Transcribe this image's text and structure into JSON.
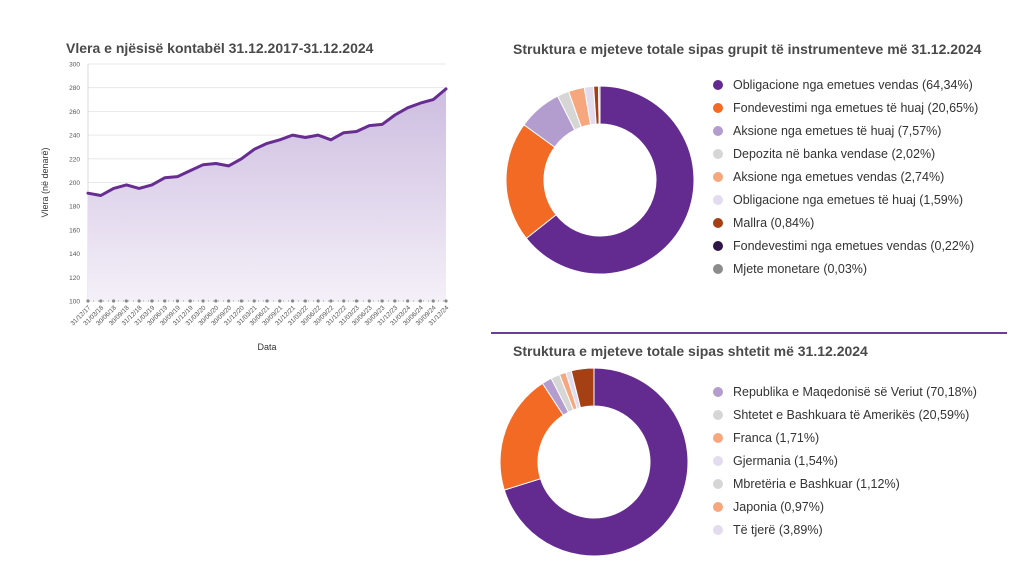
{
  "colors": {
    "line": "#672d91",
    "area_top": "#cdbde0",
    "area_bottom": "#f4f0f8",
    "grid": "#e3e3e3",
    "divider": "#6a3d98"
  },
  "chart_data": [
    {
      "type": "area",
      "title": "Vlera e njësisë kontabël 31.12.2017-31.12.2024",
      "xlabel": "Data",
      "ylabel": "Vlera (në denarë)",
      "ylim": [
        100,
        300
      ],
      "yticks": [
        100,
        120,
        140,
        160,
        180,
        200,
        220,
        240,
        260,
        280,
        300
      ],
      "grid": true,
      "xticks": [
        "31/12/17",
        "31/03/18",
        "30/06/18",
        "30/09/18",
        "31/12/18",
        "31/03/19",
        "30/06/19",
        "30/09/19",
        "31/12/19",
        "31/03/20",
        "30/06/20",
        "30/09/20",
        "31/12/20",
        "31/03/21",
        "30/06/21",
        "30/09/21",
        "31/12/21",
        "31/03/22",
        "30/06/22",
        "30/09/22",
        "31/12/22",
        "31/03/23",
        "30/06/23",
        "30/09/23",
        "31/12/23",
        "31/03/24",
        "30/06/24",
        "30/09/24",
        "31/12/24"
      ],
      "series": [
        {
          "x": [
            "31/12/17",
            "31/03/18",
            "30/06/18",
            "30/09/18",
            "31/12/18",
            "31/03/19",
            "30/06/19",
            "30/09/19",
            "31/12/19",
            "31/03/20",
            "30/06/20",
            "30/09/20",
            "31/12/20",
            "31/03/21",
            "30/06/21",
            "30/09/21",
            "31/12/21",
            "31/03/22",
            "30/06/22",
            "30/09/22",
            "31/12/22",
            "31/03/23",
            "30/06/23",
            "30/09/23",
            "31/12/23",
            "31/03/24",
            "30/06/24",
            "30/09/24",
            "31/12/24"
          ],
          "values": [
            191,
            189,
            195,
            198,
            195,
            198,
            204,
            205,
            210,
            215,
            216,
            214,
            220,
            228,
            233,
            236,
            240,
            238,
            240,
            236,
            242,
            243,
            248,
            249,
            257,
            263,
            267,
            270,
            279
          ]
        }
      ]
    },
    {
      "type": "pie",
      "title": "Struktura e mjeteve totale sipas grupit të instrumenteve më 31.12.2024",
      "series": [
        {
          "name": "Obligacione nga emetues vendas (64,34%)",
          "value": 64.34,
          "color": "#632b8f"
        },
        {
          "name": "Fondevestimi nga emetues të huaj (20,65%)",
          "value": 20.65,
          "color": "#f26a24"
        },
        {
          "name": "Aksione nga emetues të huaj (7,57%)",
          "value": 7.57,
          "color": "#b39dcf"
        },
        {
          "name": "Depozita në banka vendase (2,02%)",
          "value": 2.02,
          "color": "#d6d6d6"
        },
        {
          "name": "Aksione nga emetues vendas (2,74%)",
          "value": 2.74,
          "color": "#f7a77d"
        },
        {
          "name": "Obligacione nga emetues të huaj (1,59%)",
          "value": 1.59,
          "color": "#e3dcef"
        },
        {
          "name": "Mallra (0,84%)",
          "value": 0.84,
          "color": "#a53f14"
        },
        {
          "name": "Fondevestimi nga emetues vendas (0,22%)",
          "value": 0.22,
          "color": "#2e1646"
        },
        {
          "name": "Mjete monetare (0,03%)",
          "value": 0.03,
          "color": "#8c8c8c"
        }
      ]
    },
    {
      "type": "pie",
      "title": "Struktura e mjeteve totale sipas shtetit më 31.12.2024",
      "series": [
        {
          "name": "Republika e Maqedonisë së Veriut (70,18%)",
          "value": 70.18,
          "color": "#632b8f",
          "legend_color": "#b39dcf"
        },
        {
          "name": "Shtetet e Bashkuara të Amerikës (20,59%)",
          "value": 20.59,
          "color": "#f26a24",
          "legend_color": "#d6d6d6"
        },
        {
          "name": "Franca (1,71%)",
          "value": 1.71,
          "color": "#b39dcf",
          "legend_color": "#f7a77d"
        },
        {
          "name": "Gjermania (1,54%)",
          "value": 1.54,
          "color": "#d6d6d6",
          "legend_color": "#e3dcef"
        },
        {
          "name": "Mbretëria e Bashkuar (1,12%)",
          "value": 1.12,
          "color": "#f7a77d",
          "legend_color": "#d6d6d6"
        },
        {
          "name": "Japonia (0,97%)",
          "value": 0.97,
          "color": "#e3dcef",
          "legend_color": "#f7a77d"
        },
        {
          "name": "Të tjerë (3,89%)",
          "value": 3.89,
          "color": "#a53f14",
          "legend_color": "#e3dcef"
        }
      ]
    }
  ]
}
